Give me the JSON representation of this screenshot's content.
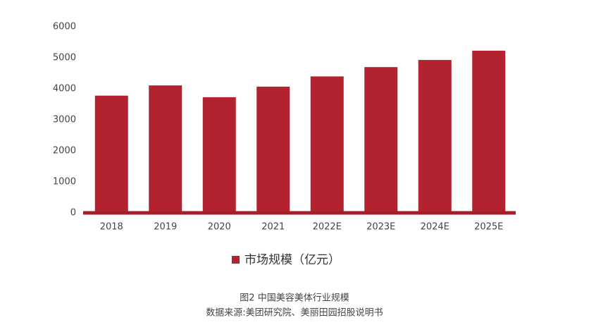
{
  "chart_data": {
    "type": "bar",
    "title": "图2 中国美容美体行业规模",
    "source": "数据来源:美团研究院、美丽田园招股说明书",
    "categories": [
      "2018",
      "2019",
      "2020",
      "2021",
      "2022E",
      "2023E",
      "2024E",
      "2025E"
    ],
    "series": [
      {
        "name": "市场规模（亿元）",
        "color": "#b3232f",
        "values": [
          3780,
          4110,
          3730,
          4070,
          4400,
          4700,
          4930,
          5230
        ]
      }
    ],
    "ylim": [
      0,
      6000
    ],
    "yticks": [
      0,
      1000,
      2000,
      3000,
      4000,
      5000,
      6000
    ],
    "grid": false,
    "legend": "bottom"
  }
}
